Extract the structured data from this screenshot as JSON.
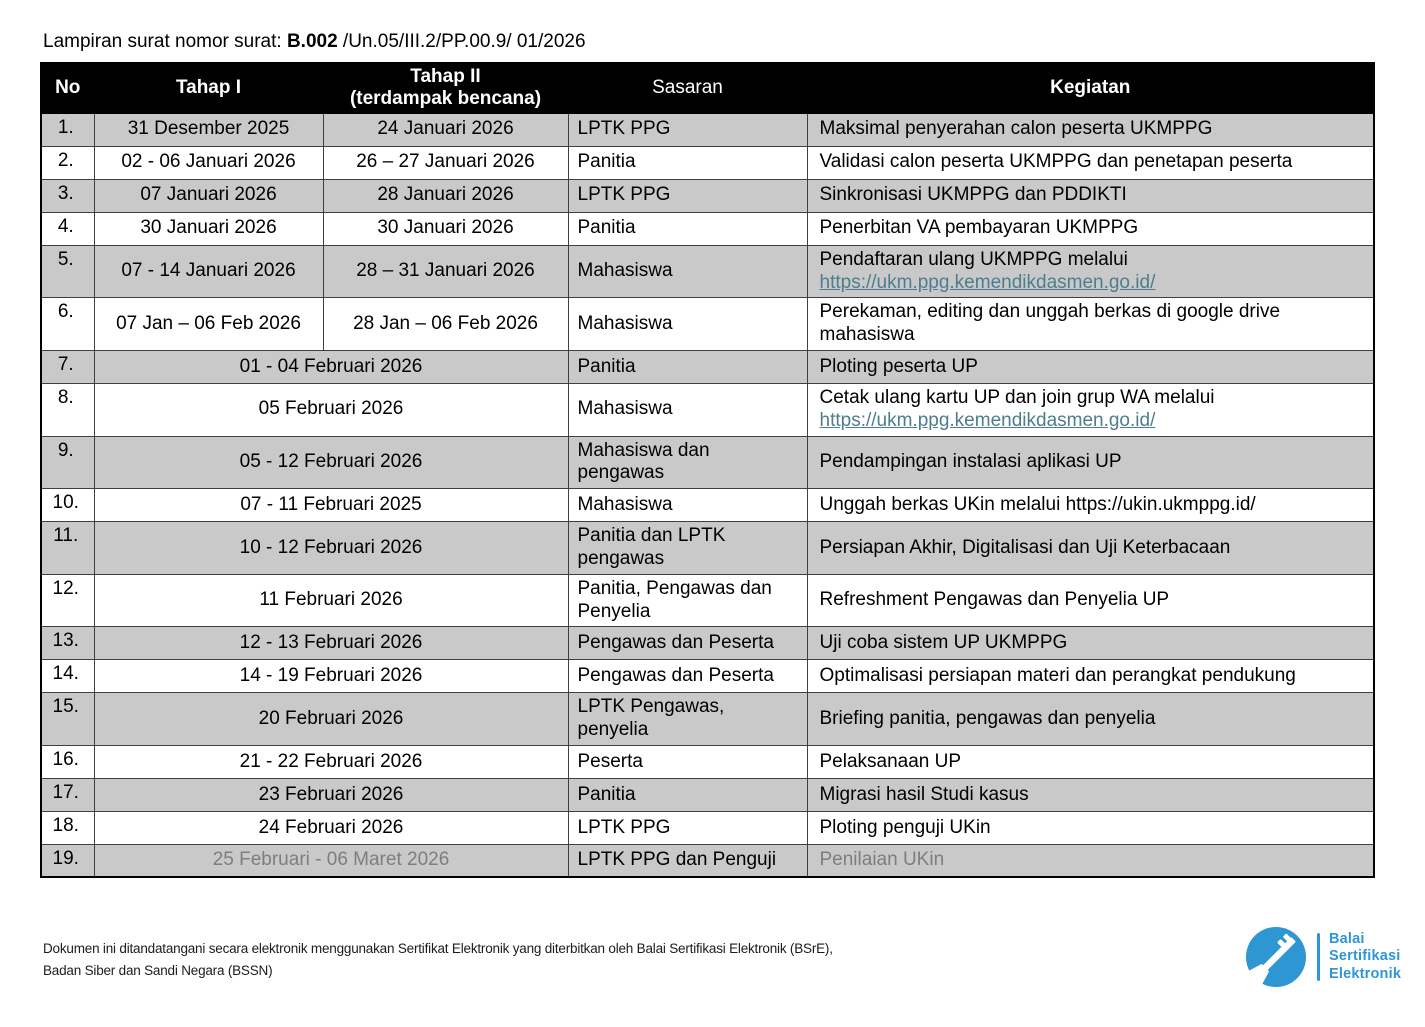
{
  "title": {
    "prefix": "Lampiran surat nomor surat: ",
    "number": "B.002",
    "suffix": " /Un.05/III.2/PP.00.9/ 01/2026"
  },
  "table": {
    "headers": {
      "no": "No",
      "tahap1": "Tahap I",
      "tahap2": "Tahap II\n(terdampak bencana)",
      "sasaran": "Sasaran",
      "kegiatan": "Kegiatan"
    },
    "rows": [
      {
        "no": "1.",
        "tahap1": "31 Desember 2025",
        "tahap2": "24 Januari 2026",
        "sasaran": "LPTK PPG",
        "kegiatan": "Maksimal penyerahan calon peserta UKMPPG"
      },
      {
        "no": "2.",
        "tahap1": "02 - 06 Januari 2026",
        "tahap2": "26 – 27 Januari 2026",
        "sasaran": "Panitia",
        "kegiatan": "Validasi calon peserta UKMPPG dan penetapan peserta"
      },
      {
        "no": "3.",
        "tahap1": "07 Januari 2026",
        "tahap2": "28 Januari 2026",
        "sasaran": "LPTK PPG",
        "kegiatan": "Sinkronisasi UKMPPG dan PDDIKTI"
      },
      {
        "no": "4.",
        "tahap1": "30 Januari 2026",
        "tahap2": "30 Januari 2026",
        "sasaran": "Panitia",
        "kegiatan": "Penerbitan VA pembayaran UKMPPG"
      },
      {
        "no": "5.",
        "tahap1": "07 - 14 Januari 2026",
        "tahap2": "28 – 31 Januari 2026",
        "sasaran": "Mahasiswa",
        "kegiatan": "Pendaftaran ulang UKMPPG melalui",
        "kegiatan_link": "https://ukm.ppg.kemendikdasmen.go.id/"
      },
      {
        "no": "6.",
        "tahap1": "07 Jan – 06 Feb 2026",
        "tahap2": "28 Jan – 06 Feb 2026",
        "sasaran": "Mahasiswa",
        "kegiatan": "Perekaman, editing dan unggah berkas di google drive\nmahasiswa"
      },
      {
        "no": "7.",
        "merged": "01 - 04 Februari 2026",
        "sasaran": "Panitia",
        "kegiatan": "Ploting peserta UP"
      },
      {
        "no": "8.",
        "merged": "05 Februari 2026",
        "sasaran": "Mahasiswa",
        "kegiatan": "Cetak ulang kartu UP dan join grup WA melalui",
        "kegiatan_link": "https://ukm.ppg.kemendikdasmen.go.id/"
      },
      {
        "no": "9.",
        "merged": "05 - 12 Februari 2026",
        "sasaran": "Mahasiswa dan\npengawas",
        "kegiatan": "Pendampingan instalasi aplikasi UP"
      },
      {
        "no": "10.",
        "merged": "07 - 11 Februari 2025",
        "sasaran": "Mahasiswa",
        "kegiatan": "Unggah berkas UKin melalui https://ukin.ukmppg.id/"
      },
      {
        "no": "11.",
        "merged": "10 - 12 Februari 2026",
        "sasaran": "Panitia dan LPTK\npengawas",
        "kegiatan": "Persiapan Akhir, Digitalisasi dan Uji Keterbacaan"
      },
      {
        "no": "12.",
        "merged": "11 Februari 2026",
        "sasaran": "Panitia, Pengawas dan\nPenyelia",
        "kegiatan": "Refreshment Pengawas dan Penyelia UP"
      },
      {
        "no": "13.",
        "merged": "12 - 13 Februari 2026",
        "sasaran": "Pengawas dan Peserta",
        "kegiatan": "Uji coba sistem UP UKMPPG"
      },
      {
        "no": "14.",
        "merged": "14 - 19 Februari 2026",
        "sasaran": "Pengawas dan Peserta",
        "kegiatan": "Optimalisasi persiapan materi dan perangkat pendukung"
      },
      {
        "no": "15.",
        "merged": "20 Februari 2026",
        "sasaran": "LPTK Pengawas,\npenyelia",
        "kegiatan": "Briefing panitia, pengawas dan penyelia"
      },
      {
        "no": "16.",
        "merged": "21 - 22 Februari 2026",
        "sasaran": "Peserta",
        "kegiatan": "Pelaksanaan UP"
      },
      {
        "no": "17.",
        "merged": "23 Februari 2026",
        "sasaran": "Panitia",
        "kegiatan": "Migrasi hasil Studi kasus"
      },
      {
        "no": "18.",
        "merged": "24 Februari 2026",
        "sasaran": "LPTK PPG",
        "kegiatan": "Ploting penguji UKin"
      },
      {
        "no": "19.",
        "merged": "25 Februari - 06 Maret 2026",
        "sasaran": "LPTK PPG dan Penguji",
        "kegiatan": "Penilaian UKin",
        "muted": true
      }
    ]
  },
  "footer": {
    "line1": "Dokumen ini  ditandatangani secara elektronik menggunakan Sertifikat Elektronik yang diterbitkan oleh Balai Sertifikasi Elektronik (BSrE),",
    "line2": "Badan Siber dan Sandi Negara (BSSN)"
  },
  "logo": {
    "icon": "key-icon",
    "line1": "Balai",
    "line2": "Sertifikasi",
    "line3": "Elektronik"
  },
  "colors": {
    "header_bg": "#000000",
    "row_shaded": "#c9c9c9",
    "link": "#4d7d8e",
    "muted_text": "#7e7e7e",
    "logo_blue": "#2e96d2"
  }
}
